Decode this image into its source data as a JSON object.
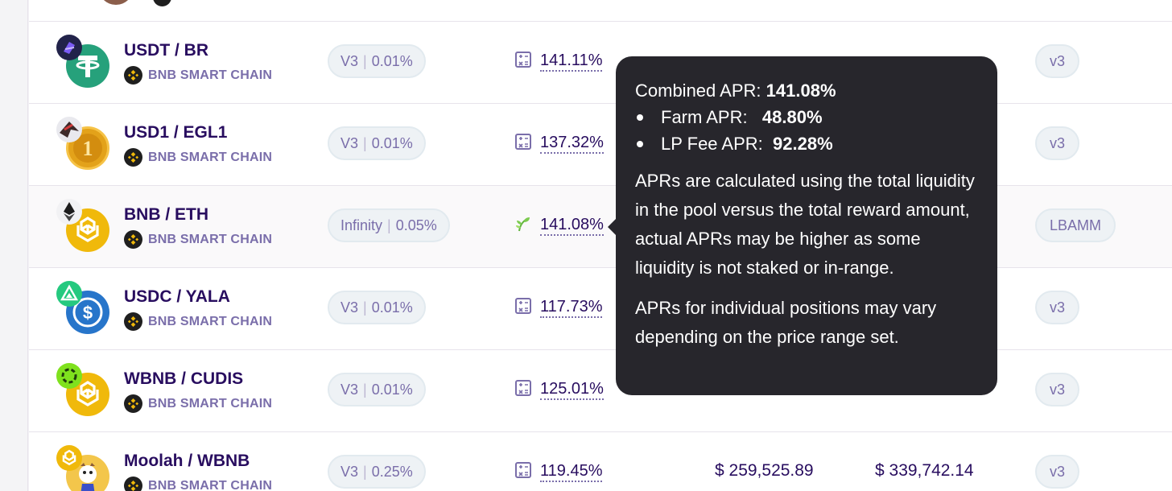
{
  "colors": {
    "text_primary": "#280d5f",
    "text_secondary": "#7a6eaa",
    "pill_bg": "#eef2f5",
    "tooltip_bg": "#27262c",
    "bnb_yellow": "#f0b90b",
    "tether_green": "#26a17b",
    "usdc_blue": "#2775ca"
  },
  "rows": [
    {
      "pair": "USDT / BR",
      "chain": "BNB SMART CHAIN",
      "fee_protocol": "V3",
      "fee": "0.01%",
      "apr": "141.11%",
      "apr_icon": "calculator-icon",
      "protocol": "v3",
      "icon_small": "br-token-icon",
      "icon_big": "tether-icon"
    },
    {
      "pair": "USD1 / EGL1",
      "chain": "BNB SMART CHAIN",
      "fee_protocol": "V3",
      "fee": "0.01%",
      "apr": "137.32%",
      "apr_icon": "calculator-icon",
      "protocol": "v3",
      "icon_small": "egl1-token-icon",
      "icon_big": "usd1-token-icon"
    },
    {
      "pair": "BNB / ETH",
      "chain": "BNB SMART CHAIN",
      "fee_protocol": "Infinity",
      "fee": "0.05%",
      "apr": "141.08%",
      "apr_icon": "farm-sprout-icon",
      "protocol": "LBAMM",
      "icon_small": "eth-token-icon",
      "icon_big": "bnb-token-icon"
    },
    {
      "pair": "USDC / YALA",
      "chain": "BNB SMART CHAIN",
      "fee_protocol": "V3",
      "fee": "0.01%",
      "apr": "117.73%",
      "apr_icon": "calculator-icon",
      "protocol": "v3",
      "icon_small": "yala-token-icon",
      "icon_big": "usdc-token-icon"
    },
    {
      "pair": "WBNB / CUDIS",
      "chain": "BNB SMART CHAIN",
      "fee_protocol": "V3",
      "fee": "0.01%",
      "apr": "125.01%",
      "apr_icon": "calculator-icon",
      "protocol": "v3",
      "icon_small": "cudis-token-icon",
      "icon_big": "wbnb-token-icon"
    },
    {
      "pair": "Moolah / WBNB",
      "chain": "BNB SMART CHAIN",
      "fee_protocol": "V3",
      "fee": "0.25%",
      "apr": "119.45%",
      "apr_icon": "calculator-icon",
      "protocol": "v3",
      "tvl": "$ 259,525.89",
      "volume": "$ 339,742.14",
      "icon_small": "bnb-token-icon",
      "icon_big": "moolah-token-icon"
    }
  ],
  "tooltip": {
    "combined_label": "Combined APR:",
    "combined_value": "141.08%",
    "farm_label": "Farm APR:",
    "farm_value": "48.80%",
    "lp_label": "LP Fee APR:",
    "lp_value": "92.28%",
    "paragraph1": "APRs are calculated using the total liquidity in the pool versus the total reward amount, actual APRs may be higher as some liquidity is not staked or in-range.",
    "paragraph2": "APRs for individual positions may vary depending on the price range set."
  }
}
